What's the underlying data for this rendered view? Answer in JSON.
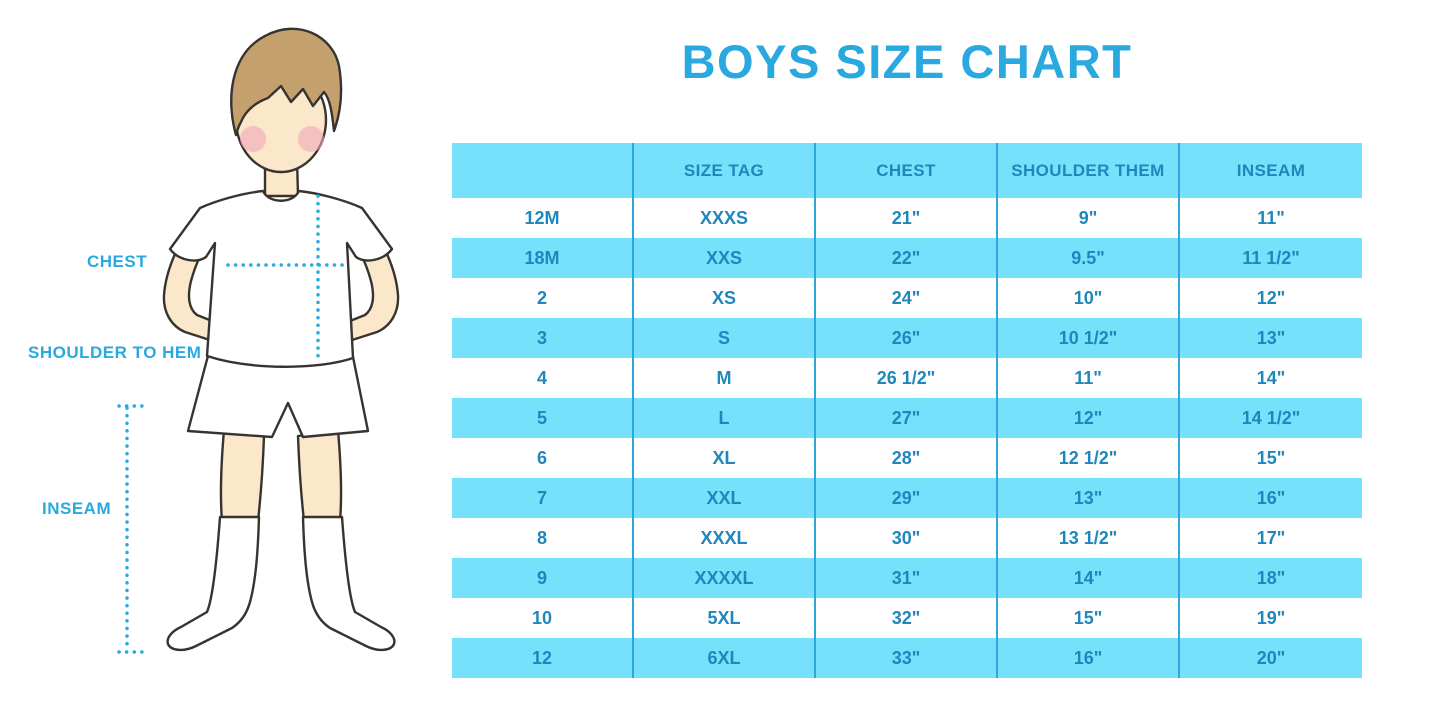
{
  "title": "BOYS SIZE CHART",
  "figure": {
    "chest_label": "CHEST",
    "shoulder_to_hem_label": "SHOULDER TO HEM",
    "inseam_label": "INSEAM"
  },
  "chart_data": {
    "type": "table",
    "title": "BOYS SIZE CHART",
    "columns": [
      "",
      "SIZE TAG",
      "CHEST",
      "SHOULDER THEM",
      "INSEAM"
    ],
    "rows": [
      [
        "12M",
        "XXXS",
        "21\"",
        "9\"",
        "11\""
      ],
      [
        "18M",
        "XXS",
        "22\"",
        "9.5\"",
        "11 1/2\""
      ],
      [
        "2",
        "XS",
        "24\"",
        "10\"",
        "12\""
      ],
      [
        "3",
        "S",
        "26\"",
        "10 1/2\"",
        "13\""
      ],
      [
        "4",
        "M",
        "26 1/2\"",
        "11\"",
        "14\""
      ],
      [
        "5",
        "L",
        "27\"",
        "12\"",
        "14 1/2\""
      ],
      [
        "6",
        "XL",
        "28\"",
        "12 1/2\"",
        "15\""
      ],
      [
        "7",
        "XXL",
        "29\"",
        "13\"",
        "16\""
      ],
      [
        "8",
        "XXXL",
        "30\"",
        "13 1/2\"",
        "17\""
      ],
      [
        "9",
        "XXXXL",
        "31\"",
        "14\"",
        "18\""
      ],
      [
        "10",
        "5XL",
        "32\"",
        "15\"",
        "19\""
      ],
      [
        "12",
        "6XL",
        "33\"",
        "16\"",
        "20\""
      ]
    ],
    "row_striping": "alternating white / cyan, header cyan",
    "grid": "vertical column dividers only"
  },
  "colors": {
    "accent": "#29A9E0",
    "row_cyan": "#76E1FB",
    "cell_text": "#1E87BD",
    "divider": "#2EA6D9",
    "skin": "#FBE7C9",
    "hair": "#C4A06F",
    "blush": "#F2A6BB",
    "outline": "#37332F"
  }
}
